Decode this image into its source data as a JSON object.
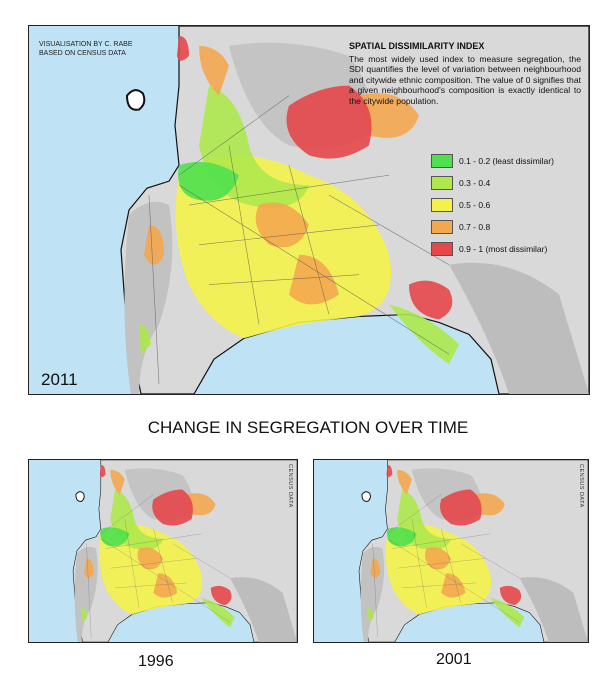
{
  "main_map": {
    "credit": [
      "VISUALISATION BY C. RABE",
      "BASED ON CENSUS DATA"
    ],
    "year": "2011",
    "legend": {
      "title": "SPATIAL DISSIMILARITY INDEX",
      "description": "The most widely used index to measure segregation, the SDI quantifies the level of variation between neighbourhood and citywide ethnic composition. The value of 0 signifies that a given neighbourhood's composition is exactly identical to the citywide population.",
      "items": [
        {
          "label": "0.1 - 0.2 (least dissimilar)",
          "color": "#4fe04f"
        },
        {
          "label": "0.3 - 0.4",
          "color": "#aee84c"
        },
        {
          "label": "0.5 - 0.6",
          "color": "#f4f24a"
        },
        {
          "label": "0.7 - 0.8",
          "color": "#f3a74f"
        },
        {
          "label": "0.9 - 1 (most dissimilar)",
          "color": "#e6474b"
        }
      ]
    }
  },
  "heading": "CHANGE IN SEGREGATION OVER TIME",
  "small_maps": [
    {
      "year": "1996",
      "source": "CENSUS DATA"
    },
    {
      "year": "2001",
      "source": "CENSUS DATA"
    }
  ]
}
